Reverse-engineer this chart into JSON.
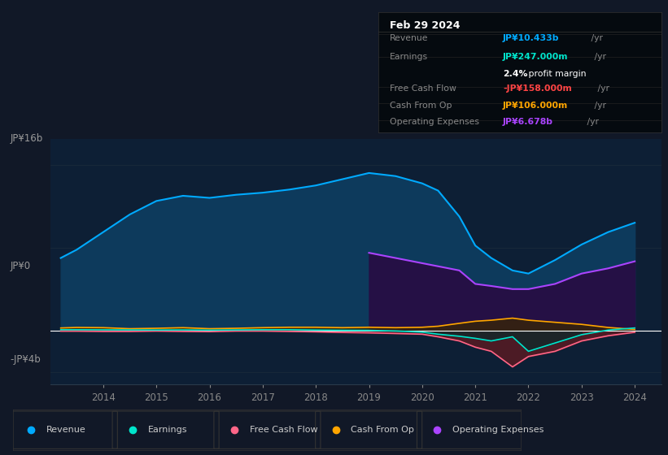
{
  "bg_color": "#111827",
  "chart_bg": "#0d1f35",
  "title_date": "Feb 29 2024",
  "tooltip_bg": "#050a0f",
  "tooltip": {
    "Revenue": {
      "value": "JP¥10.433b",
      "color": "#00aaff"
    },
    "Earnings": {
      "value": "JP¥247.000m",
      "color": "#00e5cc"
    },
    "profit_margin": "2.4%",
    "Free Cash Flow": {
      "value": "-JP¥158.000m",
      "color": "#ff4444"
    },
    "Cash From Op": {
      "value": "JP¥106.000m",
      "color": "#ffa500"
    },
    "Operating Expenses": {
      "value": "JP¥6.678b",
      "color": "#aa44ff"
    }
  },
  "ylabel_top": "JP¥16b",
  "ylabel_zero": "JP¥0",
  "ylabel_neg": "-JP¥4b",
  "years": [
    2013.2,
    2013.5,
    2014.0,
    2014.5,
    2015.0,
    2015.5,
    2016.0,
    2016.5,
    2017.0,
    2017.5,
    2018.0,
    2018.5,
    2019.0,
    2019.5,
    2020.0,
    2020.3,
    2020.7,
    2021.0,
    2021.3,
    2021.7,
    2022.0,
    2022.5,
    2023.0,
    2023.5,
    2024.0
  ],
  "revenue": [
    7.0,
    7.8,
    9.5,
    11.2,
    12.5,
    13.0,
    12.8,
    13.1,
    13.3,
    13.6,
    14.0,
    14.6,
    15.2,
    14.9,
    14.2,
    13.5,
    11.0,
    8.2,
    7.0,
    5.8,
    5.5,
    6.8,
    8.3,
    9.5,
    10.4
  ],
  "earnings": [
    0.08,
    0.08,
    0.07,
    0.06,
    0.05,
    0.06,
    0.04,
    0.06,
    0.08,
    0.08,
    0.05,
    0.03,
    0.02,
    -0.04,
    -0.15,
    -0.35,
    -0.55,
    -0.75,
    -1.0,
    -0.6,
    -2.0,
    -1.2,
    -0.4,
    0.05,
    0.25
  ],
  "free_cash_flow": [
    -0.05,
    -0.05,
    -0.08,
    -0.08,
    -0.04,
    -0.08,
    -0.1,
    -0.04,
    -0.04,
    -0.08,
    -0.12,
    -0.18,
    -0.22,
    -0.28,
    -0.35,
    -0.6,
    -1.0,
    -1.6,
    -2.0,
    -3.5,
    -2.5,
    -2.0,
    -1.0,
    -0.5,
    -0.16
  ],
  "cash_from_op": [
    0.25,
    0.3,
    0.28,
    0.18,
    0.22,
    0.28,
    0.18,
    0.22,
    0.28,
    0.32,
    0.32,
    0.28,
    0.32,
    0.28,
    0.32,
    0.42,
    0.7,
    0.9,
    1.0,
    1.2,
    1.0,
    0.8,
    0.6,
    0.3,
    0.11
  ],
  "operating_expenses": [
    0.0,
    0.0,
    0.0,
    0.0,
    0.0,
    0.0,
    0.0,
    0.0,
    0.0,
    0.0,
    0.0,
    0.0,
    7.5,
    7.0,
    6.5,
    6.2,
    5.8,
    4.5,
    4.3,
    4.0,
    4.0,
    4.5,
    5.5,
    6.0,
    6.678
  ],
  "revenue_color": "#00aaff",
  "revenue_fill": "#0d3a5c",
  "earnings_color": "#00e5cc",
  "fcf_color": "#ff6688",
  "fcf_fill_neg": "#5c1a22",
  "cashop_color": "#ffa500",
  "opex_color": "#aa44ff",
  "opex_fill": "#251045",
  "legend_entries": [
    "Revenue",
    "Earnings",
    "Free Cash Flow",
    "Cash From Op",
    "Operating Expenses"
  ],
  "legend_colors": [
    "#00aaff",
    "#00e5cc",
    "#ff6688",
    "#ffa500",
    "#aa44ff"
  ],
  "x_ticks": [
    2014,
    2015,
    2016,
    2017,
    2018,
    2019,
    2020,
    2021,
    2022,
    2023,
    2024
  ],
  "ylim": [
    -5.2,
    18.5
  ],
  "xlim": [
    2013.0,
    2024.5
  ]
}
